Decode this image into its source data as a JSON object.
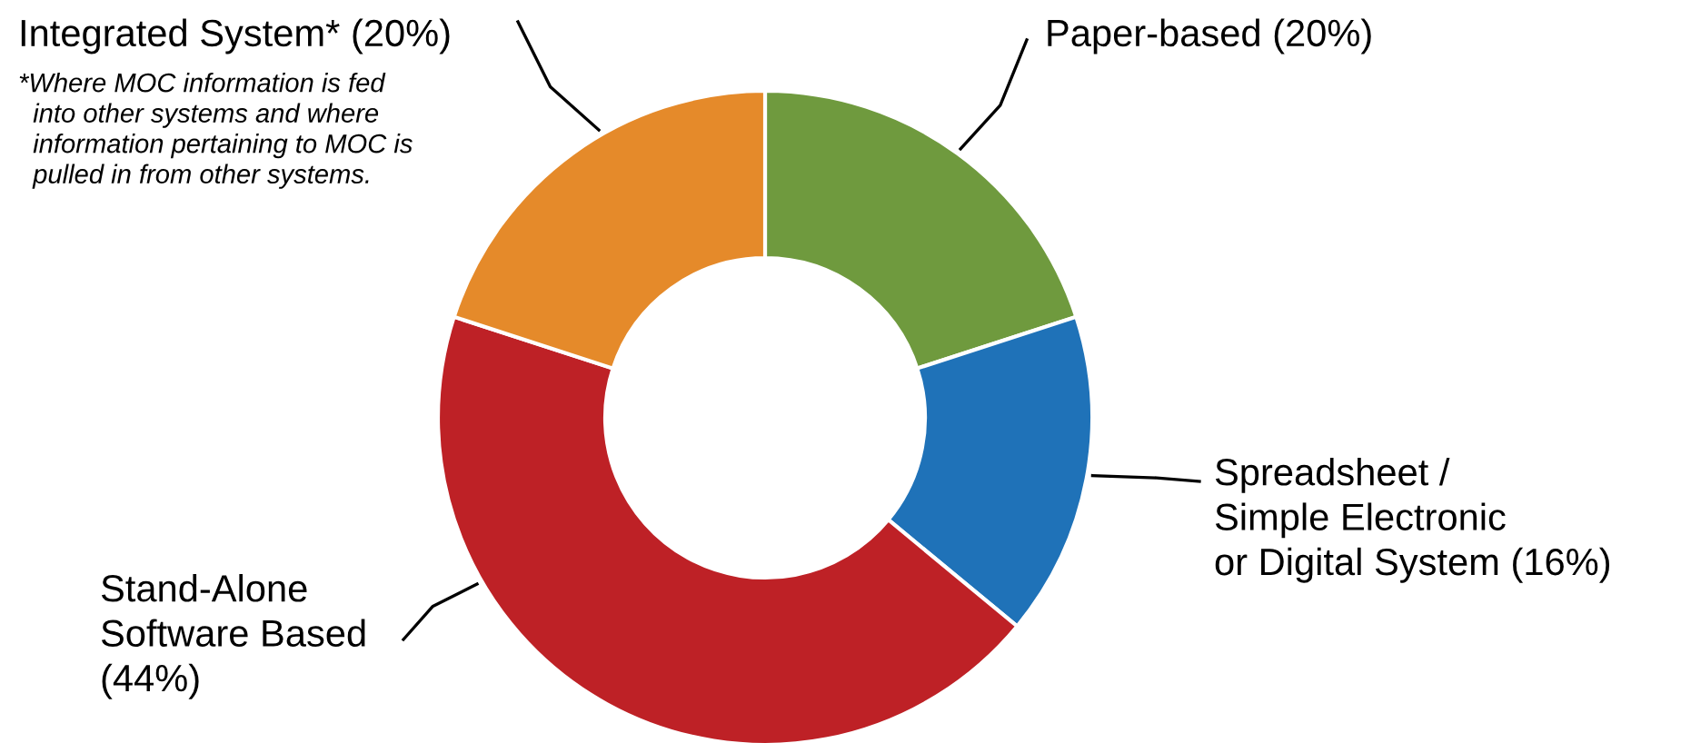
{
  "chart_data": {
    "type": "donut",
    "categories": [
      "Paper-based (20%)",
      "Spreadsheet /\nSimple Electronic\nor Digital System (16%)",
      "Stand-Alone\nSoftware Based\n(44%)",
      "Integrated System* (20%)"
    ],
    "values": [
      20,
      16,
      44,
      20
    ],
    "colors": [
      "#6f9a3e",
      "#1f72b8",
      "#be2126",
      "#e58a2a"
    ],
    "annotations": [
      "*Where MOC information is fed\n  into other systems and where\n  information pertaining to MOC is\n  pulled in from other systems."
    ]
  }
}
